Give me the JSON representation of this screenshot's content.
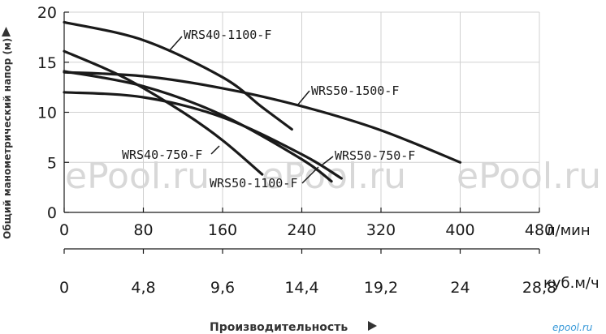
{
  "chart_data": {
    "type": "line",
    "ylabel": "Общий манометрический напор (м)",
    "xlabel": "Производительность",
    "x_unit": "л/мин",
    "x2_unit": "куб.м/ч",
    "xlim": [
      0,
      480
    ],
    "ylim": [
      0,
      20
    ],
    "x_ticks": [
      "0",
      "80",
      "160",
      "240",
      "320",
      "400",
      "480"
    ],
    "x2_ticks": [
      "0",
      "4,8",
      "9,6",
      "14,4",
      "19,2",
      "24",
      "28,8"
    ],
    "y_ticks": [
      "0",
      "5",
      "10",
      "15",
      "20"
    ],
    "grid": true,
    "series": [
      {
        "name": "WRS40-1100-F",
        "x": [
          0,
          80,
          160,
          200,
          230
        ],
        "y": [
          19,
          17.2,
          13.5,
          10.5,
          8.3
        ]
      },
      {
        "name": "WRS50-1500-F",
        "x": [
          0,
          80,
          160,
          240,
          320,
          400
        ],
        "y": [
          14,
          13.6,
          12.4,
          10.6,
          8.2,
          5
        ]
      },
      {
        "name": "WRS40-750-F",
        "x": [
          0,
          60,
          120,
          160,
          200
        ],
        "y": [
          16.1,
          13.5,
          10,
          7.2,
          3.8
        ]
      },
      {
        "name": "WRS50-1100-F",
        "x": [
          0,
          80,
          160,
          240,
          280
        ],
        "y": [
          12,
          11.5,
          9.5,
          5.8,
          3.4
        ]
      },
      {
        "name": "WRS50-750-F",
        "x": [
          0,
          80,
          160,
          240,
          270
        ],
        "y": [
          14.1,
          12.6,
          9.7,
          5.3,
          3.1
        ]
      }
    ]
  },
  "watermarks": {
    "main": "ePool.ru",
    "corner": "epool.ru"
  }
}
